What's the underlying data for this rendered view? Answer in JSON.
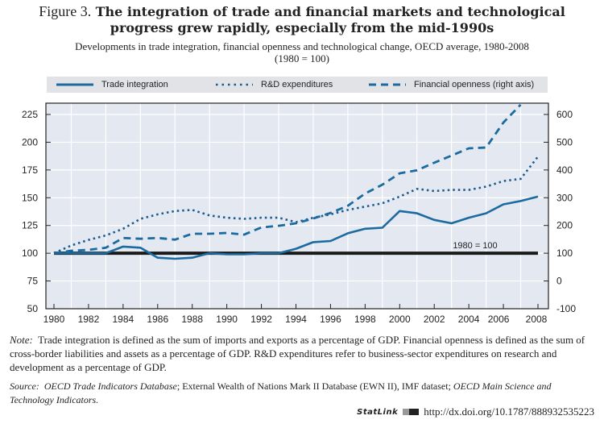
{
  "figure": {
    "label": "Figure 3.",
    "title": "The integration of trade and financial markets and technological progress grew rapidly, especially from the mid-1990s",
    "title_line1": "The integration of trade and financial markets and technological",
    "title_line2": "progress grew rapidly, especially from the mid-1990s",
    "subtitle_line1": "Developments in trade integration, financial openness and technological change, OECD average, 1980-2008",
    "subtitle_line2": "(1980 = 100)"
  },
  "legend": {
    "items": [
      {
        "label": "Trade integration",
        "style": "solid"
      },
      {
        "label": "R&D expenditures",
        "style": "dotted"
      },
      {
        "label": "Financial openness (right axis)",
        "style": "dashed"
      }
    ]
  },
  "chart_data": {
    "type": "line",
    "title": "The integration of trade and financial markets and technological progress grew rapidly, especially from the mid-1990s",
    "subtitle": "Developments in trade integration, financial openness and technological change, OECD average, 1980-2008 (1980 = 100)",
    "x": [
      1980,
      1981,
      1982,
      1983,
      1984,
      1985,
      1986,
      1987,
      1988,
      1989,
      1990,
      1991,
      1992,
      1993,
      1994,
      1995,
      1996,
      1997,
      1998,
      1999,
      2000,
      2001,
      2002,
      2003,
      2004,
      2005,
      2006,
      2007,
      2008
    ],
    "x_tick_labels": [
      "1980",
      "1982",
      "1984",
      "1986",
      "1988",
      "1990",
      "1992",
      "1994",
      "1996",
      "1998",
      "2000",
      "2002",
      "2004",
      "2006",
      "2008"
    ],
    "xlim": [
      1980,
      2008
    ],
    "left_axis": {
      "ylim": [
        50,
        225
      ],
      "ticks": [
        50,
        75,
        100,
        125,
        150,
        175,
        200,
        225
      ]
    },
    "right_axis": {
      "ylim": [
        -100,
        600
      ],
      "ticks": [
        -100,
        0,
        100,
        200,
        300,
        400,
        500,
        600
      ]
    },
    "grid": true,
    "legend_position": "top",
    "reference_line": {
      "value": 100,
      "label": "1980 = 100",
      "axis": "left"
    },
    "series": [
      {
        "name": "Trade integration",
        "axis": "left",
        "style": "solid",
        "values": [
          100,
          100,
          100,
          100,
          106,
          105,
          96,
          95,
          96,
          100,
          99,
          99,
          100,
          100,
          104,
          110,
          111,
          118,
          122,
          123,
          138,
          136,
          130,
          127,
          132,
          136,
          144,
          147,
          151
        ]
      },
      {
        "name": "R&D expenditures",
        "axis": "left",
        "style": "dotted",
        "values": [
          100,
          107,
          112,
          116,
          122,
          131,
          135,
          138,
          139,
          134,
          132,
          131,
          132,
          132,
          128,
          132,
          135,
          139,
          142,
          145,
          151,
          158,
          156,
          157,
          157,
          160,
          165,
          167,
          187
        ]
      },
      {
        "name": "Financial openness (right axis)",
        "axis": "right",
        "style": "dashed",
        "values": [
          100,
          109,
          112,
          120,
          155,
          152,
          155,
          149,
          170,
          170,
          173,
          167,
          193,
          199,
          208,
          225,
          245,
          271,
          315,
          347,
          388,
          399,
          426,
          452,
          478,
          481,
          571,
          635,
          null
        ]
      }
    ],
    "colors": {
      "series": "#1b6aa0",
      "series_dotted": "#1b5a8e",
      "reference": "#1a1a1a",
      "plot_bg": "#e3e8f1",
      "grid": "#ffffff"
    }
  },
  "notes": {
    "note_label": "Note:",
    "note_text": "Trade integration is defined as the sum of imports and exports as a percentage of GDP. Financial openness is defined as the sum of cross-border liabilities and assets as a percentage of GDP. R&D expenditures refer to business-sector expenditures on research and development as a percentage of GDP.",
    "source_label": "Source:",
    "source_part1": "OECD Trade Indicators Database",
    "source_part2": "; External Wealth of Nations Mark II Database (EWN II), IMF dataset; ",
    "source_part3": "OECD Main Science and Technology Indicators.",
    "statlink_label": "StatLink",
    "statlink_url": "http://dx.doi.org/10.1787/888932535223"
  }
}
